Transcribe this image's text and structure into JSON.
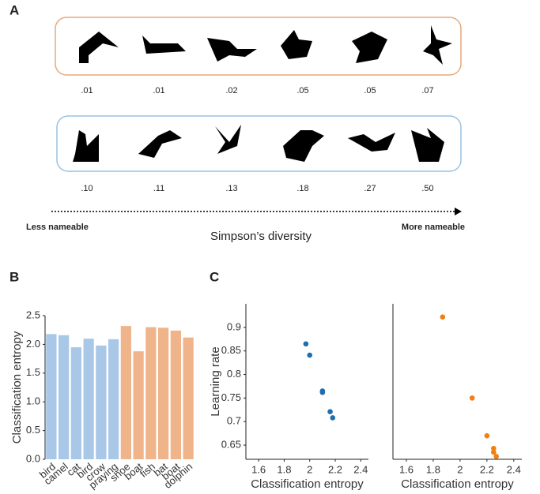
{
  "panel_labels": [
    "A",
    "B",
    "C"
  ],
  "panel_a": {
    "rows": [
      [
        ".01",
        ".01",
        ".02",
        ".05",
        ".05",
        ".07"
      ],
      [
        ".10",
        ".11",
        ".13",
        ".18",
        ".27",
        ".50"
      ]
    ],
    "left_label": "Less nameable",
    "right_label": "More nameable",
    "axis_label": "Simpson’s diversity"
  },
  "chart_data": [
    {
      "type": "bar",
      "ylabel": "Classification entropy",
      "categories": [
        "bird",
        "camel",
        "cat",
        "bird",
        "crow",
        "praying",
        "shoe",
        "boat",
        "fish",
        "bat",
        "boat",
        "dolphin"
      ],
      "values": [
        2.18,
        2.16,
        1.95,
        2.1,
        1.98,
        2.09,
        2.32,
        1.88,
        2.3,
        2.29,
        2.24,
        2.12
      ],
      "colors": [
        "#a9c8e8",
        "#a9c8e8",
        "#a9c8e8",
        "#a9c8e8",
        "#a9c8e8",
        "#a9c8e8",
        "#f0b48a",
        "#f0b48a",
        "#f0b48a",
        "#f0b48a",
        "#f0b48a",
        "#f0b48a"
      ],
      "ylim": [
        0,
        2.5
      ],
      "yticks": [
        {
          "value": 0,
          "label": "0.0"
        },
        0.5,
        {
          "value": 1,
          "label": "1.0"
        },
        1.5,
        {
          "value": 2,
          "label": "2.0"
        },
        2.5
      ]
    },
    {
      "type": "scatter",
      "xlabel": "Classification entropy",
      "ylabel": "Learning rate",
      "color": "#1f6fb0",
      "x": [
        1.97,
        2.0,
        2.1,
        2.1,
        2.16,
        2.18
      ],
      "values": [
        0.865,
        0.841,
        0.765,
        0.762,
        0.721,
        0.708
      ],
      "xlim": [
        1.5,
        2.46
      ],
      "xticks": [
        1.6,
        1.8,
        2,
        2.2,
        2.4
      ],
      "ylim": [
        0.62,
        0.95
      ],
      "yticks": [
        0.65,
        0.7,
        0.75,
        0.8,
        0.85,
        0.9
      ]
    },
    {
      "type": "scatter",
      "xlabel": "Classification entropy",
      "color": "#f07f14",
      "x": [
        1.87,
        2.09,
        2.2,
        2.25,
        2.25,
        2.27
      ],
      "values": [
        0.922,
        0.75,
        0.67,
        0.643,
        0.635,
        0.626
      ],
      "xlim": [
        1.5,
        2.46
      ],
      "xticks": [
        1.6,
        1.8,
        2,
        2.2,
        2.4
      ],
      "ylim": [
        0.62,
        0.95
      ]
    }
  ]
}
